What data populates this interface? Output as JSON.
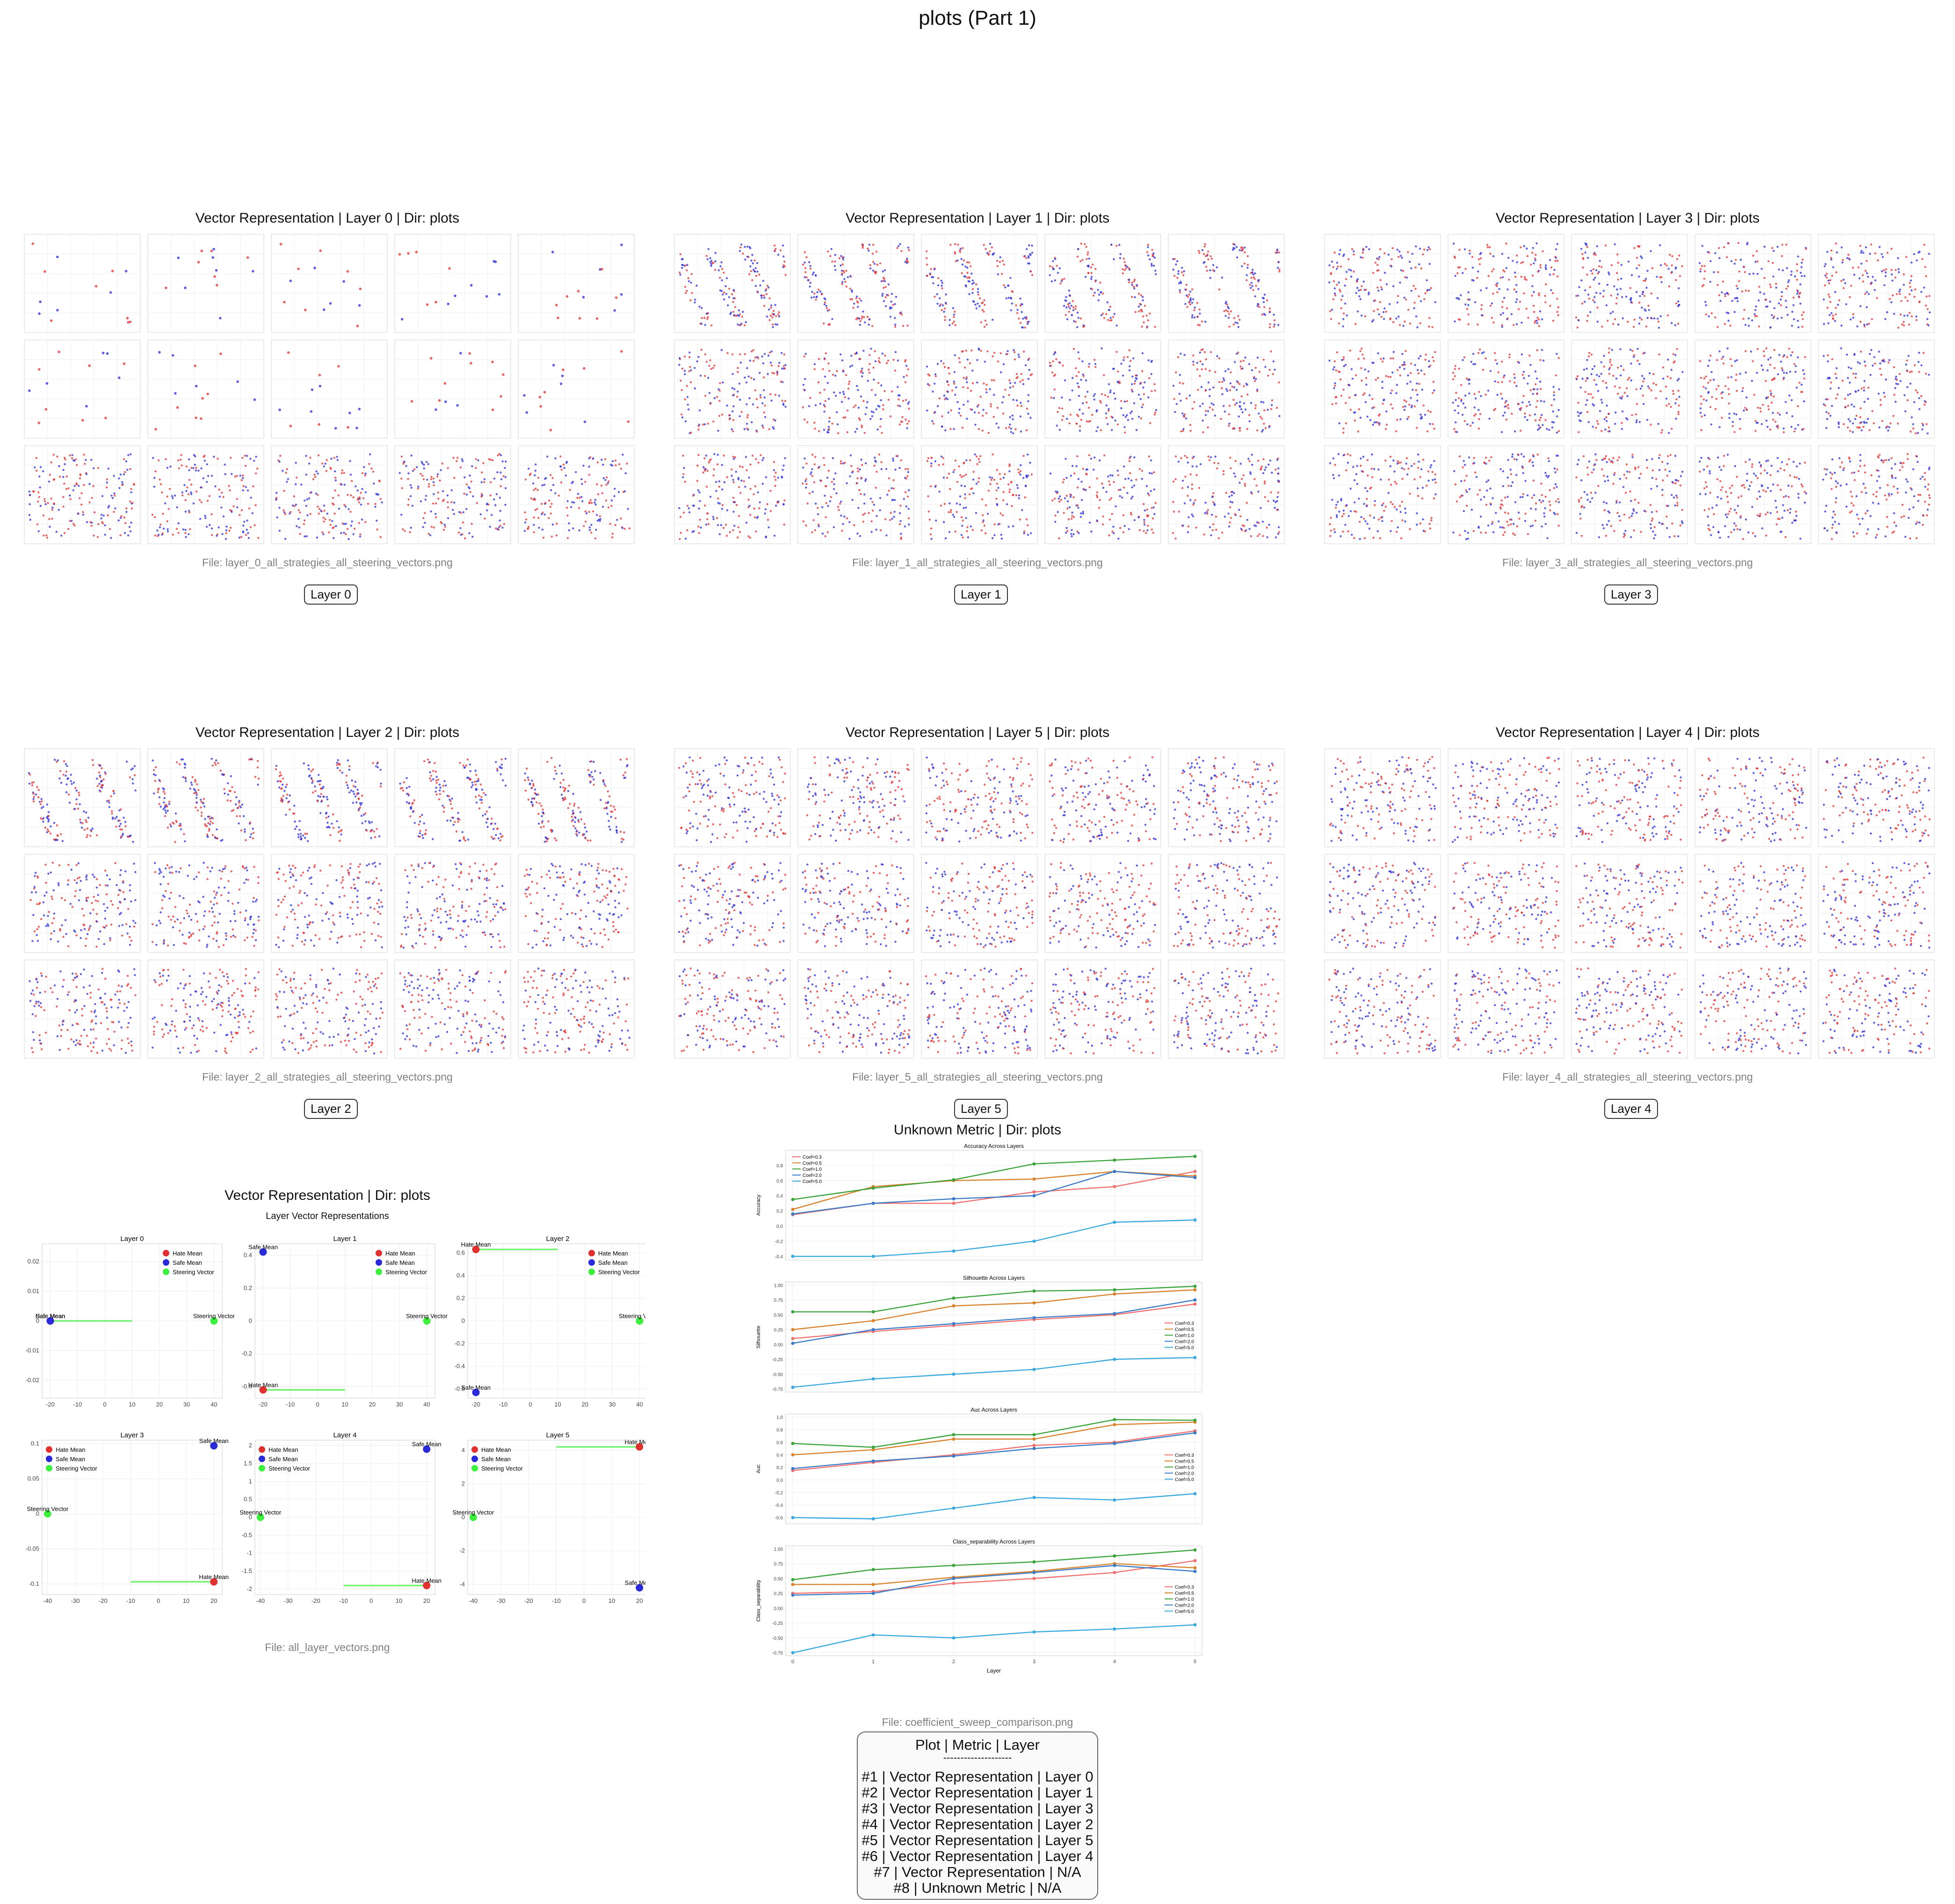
{
  "page": {
    "title": "plots (Part 1)"
  },
  "colors": {
    "hate": "#e03030",
    "safe": "#2a2ad8",
    "steer": "#3ef03e",
    "accent": "#555555"
  },
  "vector_panels": [
    {
      "title": "Vector Representation | Layer 0 | Dir: plots",
      "file": "File: layer_0_all_strategies_all_steering_vectors.png",
      "badge": "Layer 0"
    },
    {
      "title": "Vector Representation | Layer 1 | Dir: plots",
      "file": "File: layer_1_all_strategies_all_steering_vectors.png",
      "badge": "Layer 1"
    },
    {
      "title": "Vector Representation | Layer 3 | Dir: plots",
      "file": "File: layer_3_all_strategies_all_steering_vectors.png",
      "badge": "Layer 3"
    },
    {
      "title": "Vector Representation | Layer 2 | Dir: plots",
      "file": "File: layer_2_all_strategies_all_steering_vectors.png",
      "badge": "Layer 2"
    },
    {
      "title": "Vector Representation | Layer 5 | Dir: plots",
      "file": "File: layer_5_all_strategies_all_steering_vectors.png",
      "badge": "Layer 5"
    },
    {
      "title": "Vector Representation | Layer 4 | Dir: plots",
      "file": "File: layer_4_all_strategies_all_steering_vectors.png",
      "badge": "Layer 4"
    }
  ],
  "all_layers_panel": {
    "title": "Vector Representation | Dir: plots",
    "subtitle": "Layer Vector Representations",
    "file": "File: all_layer_vectors.png",
    "legend": [
      "Hate Mean",
      "Safe Mean",
      "Steering Vector"
    ]
  },
  "metric_panel": {
    "title": "Unknown Metric | Dir: plots",
    "file": "File: coefficient_sweep_comparison.png",
    "xlabel": "Layer"
  },
  "summary": {
    "header": "Plot | Metric | Layer",
    "separator": "--------------------",
    "rows": [
      "#1 | Vector Representation | Layer 0",
      "#2 | Vector Representation | Layer 1",
      "#3 | Vector Representation | Layer 3",
      "#4 | Vector Representation | Layer 2",
      "#5 | Vector Representation | Layer 5",
      "#6 | Vector Representation | Layer 4",
      "#7 | Vector Representation | N/A",
      "#8 | Unknown Metric | N/A"
    ]
  },
  "chart_data": [
    {
      "type": "scatter",
      "title": "Layer Vector Representations",
      "subplots": [
        {
          "title": "Layer 0",
          "xticks": [
            -20,
            -10,
            0,
            10,
            20,
            30,
            40
          ],
          "yticks": [
            -0.02,
            -0.01,
            0.0,
            0.01,
            0.02
          ],
          "xlim": [
            -23,
            43
          ],
          "ylim": [
            -0.026,
            0.026
          ],
          "points": [
            {
              "name": "Hate Mean",
              "x": -20,
              "y": 0.0
            },
            {
              "name": "Safe Mean",
              "x": -20,
              "y": 0.0
            },
            {
              "name": "Steering Vector",
              "x": 40,
              "y": 0.0
            }
          ]
        },
        {
          "title": "Layer 1",
          "xticks": [
            -20,
            -10,
            0,
            10,
            20,
            30,
            40
          ],
          "yticks": [
            -0.4,
            -0.2,
            0.0,
            0.2,
            0.4
          ],
          "xlim": [
            -23,
            43
          ],
          "ylim": [
            -0.47,
            0.47
          ],
          "points": [
            {
              "name": "Hate Mean",
              "x": -20,
              "y": -0.42
            },
            {
              "name": "Safe Mean",
              "x": -20,
              "y": 0.42
            },
            {
              "name": "Steering Vector",
              "x": 40,
              "y": 0.0
            }
          ]
        },
        {
          "title": "Layer 2",
          "xticks": [
            -20,
            -10,
            0,
            10,
            20,
            30,
            40
          ],
          "yticks": [
            -0.6,
            -0.4,
            -0.2,
            0.0,
            0.2,
            0.4,
            0.6
          ],
          "xlim": [
            -23,
            43
          ],
          "ylim": [
            -0.68,
            0.68
          ],
          "points": [
            {
              "name": "Hate Mean",
              "x": -20,
              "y": 0.63
            },
            {
              "name": "Safe Mean",
              "x": -20,
              "y": -0.63
            },
            {
              "name": "Steering Vector",
              "x": 40,
              "y": 0.0
            }
          ]
        },
        {
          "title": "Layer 3",
          "xticks": [
            -40,
            -30,
            -20,
            -10,
            0,
            10,
            20
          ],
          "yticks": [
            -0.1,
            -0.05,
            0.0,
            0.05,
            0.1
          ],
          "xlim": [
            -42,
            23
          ],
          "ylim": [
            -0.115,
            0.105
          ],
          "points": [
            {
              "name": "Hate Mean",
              "x": 20,
              "y": -0.097
            },
            {
              "name": "Safe Mean",
              "x": 20,
              "y": 0.097
            },
            {
              "name": "Steering Vector",
              "x": -40,
              "y": 0.0
            }
          ]
        },
        {
          "title": "Layer 4",
          "xticks": [
            -40,
            -30,
            -20,
            -10,
            0,
            10,
            20
          ],
          "yticks": [
            -2.0,
            -1.5,
            -1.0,
            -0.5,
            0.0,
            0.5,
            1.0,
            1.5,
            2.0
          ],
          "xlim": [
            -42,
            23
          ],
          "ylim": [
            -2.15,
            2.15
          ],
          "points": [
            {
              "name": "Hate Mean",
              "x": 20,
              "y": -1.9
            },
            {
              "name": "Safe Mean",
              "x": 20,
              "y": 1.9
            },
            {
              "name": "Steering Vector",
              "x": -40,
              "y": 0.0
            }
          ]
        },
        {
          "title": "Layer 5",
          "xticks": [
            -40,
            -30,
            -20,
            -10,
            0,
            10,
            20
          ],
          "yticks": [
            -4,
            -2,
            0,
            2,
            4
          ],
          "xlim": [
            -42,
            23
          ],
          "ylim": [
            -4.6,
            4.6
          ],
          "points": [
            {
              "name": "Hate Mean",
              "x": 20,
              "y": 4.2
            },
            {
              "name": "Safe Mean",
              "x": 20,
              "y": -4.2
            },
            {
              "name": "Steering Vector",
              "x": -40,
              "y": 0.0
            }
          ]
        }
      ]
    },
    {
      "type": "line",
      "x": [
        0,
        1,
        2,
        3,
        4,
        5
      ],
      "xlabel": "Layer",
      "subplots": [
        {
          "title": "Accuracy Across Layers",
          "ylabel": "Accuracy",
          "ylim": [
            -0.45,
            1.0
          ],
          "yticks": [
            -0.4,
            -0.2,
            0.0,
            0.2,
            0.4,
            0.6,
            0.8
          ],
          "legend": "top-left",
          "series": [
            {
              "name": "Coef=0.3",
              "color": "#f07070",
              "values": [
                0.15,
                0.3,
                0.3,
                0.45,
                0.52,
                0.72
              ]
            },
            {
              "name": "Coef=0.5",
              "color": "#d9822b",
              "values": [
                0.22,
                0.52,
                0.6,
                0.62,
                0.72,
                0.66
              ]
            },
            {
              "name": "Coef=1.0",
              "color": "#3aa33a",
              "values": [
                0.35,
                0.5,
                0.61,
                0.82,
                0.87,
                0.92
              ]
            },
            {
              "name": "Coef=2.0",
              "color": "#3a7bc8",
              "values": [
                0.16,
                0.3,
                0.36,
                0.4,
                0.72,
                0.64
              ]
            },
            {
              "name": "Coef=5.0",
              "color": "#3aaade",
              "values": [
                -0.4,
                -0.4,
                -0.33,
                -0.2,
                0.05,
                0.08
              ]
            }
          ]
        },
        {
          "title": "Silhouette Across Layers",
          "ylabel": "Silhouette",
          "ylim": [
            -0.8,
            1.05
          ],
          "yticks": [
            -0.75,
            -0.5,
            -0.25,
            0.0,
            0.25,
            0.5,
            0.75,
            1.0
          ],
          "legend": "center-right",
          "series": [
            {
              "name": "Coef=0.3",
              "color": "#f07070",
              "values": [
                0.1,
                0.22,
                0.32,
                0.42,
                0.5,
                0.68
              ]
            },
            {
              "name": "Coef=0.5",
              "color": "#d9822b",
              "values": [
                0.25,
                0.4,
                0.65,
                0.7,
                0.85,
                0.92
              ]
            },
            {
              "name": "Coef=1.0",
              "color": "#3aa33a",
              "values": [
                0.55,
                0.55,
                0.78,
                0.9,
                0.92,
                0.98
              ]
            },
            {
              "name": "Coef=2.0",
              "color": "#3a7bc8",
              "values": [
                0.02,
                0.25,
                0.35,
                0.45,
                0.52,
                0.75
              ]
            },
            {
              "name": "Coef=5.0",
              "color": "#3aaade",
              "values": [
                -0.72,
                -0.58,
                -0.5,
                -0.42,
                -0.25,
                -0.22
              ]
            }
          ]
        },
        {
          "title": "Auc Across Layers",
          "ylabel": "Auc",
          "ylim": [
            -0.7,
            1.05
          ],
          "yticks": [
            -0.6,
            -0.4,
            -0.2,
            0.0,
            0.2,
            0.4,
            0.6,
            0.8,
            1.0
          ],
          "legend": "center-right",
          "series": [
            {
              "name": "Coef=0.3",
              "color": "#f07070",
              "values": [
                0.15,
                0.28,
                0.4,
                0.55,
                0.6,
                0.78
              ]
            },
            {
              "name": "Coef=0.5",
              "color": "#d9822b",
              "values": [
                0.4,
                0.48,
                0.65,
                0.65,
                0.88,
                0.92
              ]
            },
            {
              "name": "Coef=1.0",
              "color": "#3aa33a",
              "values": [
                0.58,
                0.52,
                0.72,
                0.72,
                0.96,
                0.95
              ]
            },
            {
              "name": "Coef=2.0",
              "color": "#3a7bc8",
              "values": [
                0.18,
                0.3,
                0.38,
                0.5,
                0.58,
                0.75
              ]
            },
            {
              "name": "Coef=5.0",
              "color": "#3aaade",
              "values": [
                -0.6,
                -0.62,
                -0.45,
                -0.28,
                -0.32,
                -0.22
              ]
            }
          ]
        },
        {
          "title": "Class_separability Across Layers",
          "ylabel": "Class_separability",
          "ylim": [
            -0.8,
            1.05
          ],
          "yticks": [
            -0.75,
            -0.5,
            -0.25,
            0.0,
            0.25,
            0.5,
            0.75,
            1.0
          ],
          "legend": "center-right",
          "series": [
            {
              "name": "Coef=0.3",
              "color": "#f07070",
              "values": [
                0.25,
                0.28,
                0.42,
                0.5,
                0.6,
                0.8
              ]
            },
            {
              "name": "Coef=0.5",
              "color": "#d9822b",
              "values": [
                0.4,
                0.4,
                0.52,
                0.62,
                0.75,
                0.68
              ]
            },
            {
              "name": "Coef=1.0",
              "color": "#3aa33a",
              "values": [
                0.48,
                0.65,
                0.72,
                0.78,
                0.88,
                0.98
              ]
            },
            {
              "name": "Coef=2.0",
              "color": "#3a7bc8",
              "values": [
                0.22,
                0.25,
                0.5,
                0.6,
                0.72,
                0.62
              ]
            },
            {
              "name": "Coef=5.0",
              "color": "#3aaade",
              "values": [
                -0.75,
                -0.45,
                -0.5,
                -0.4,
                -0.35,
                -0.28
              ]
            }
          ]
        }
      ]
    }
  ]
}
